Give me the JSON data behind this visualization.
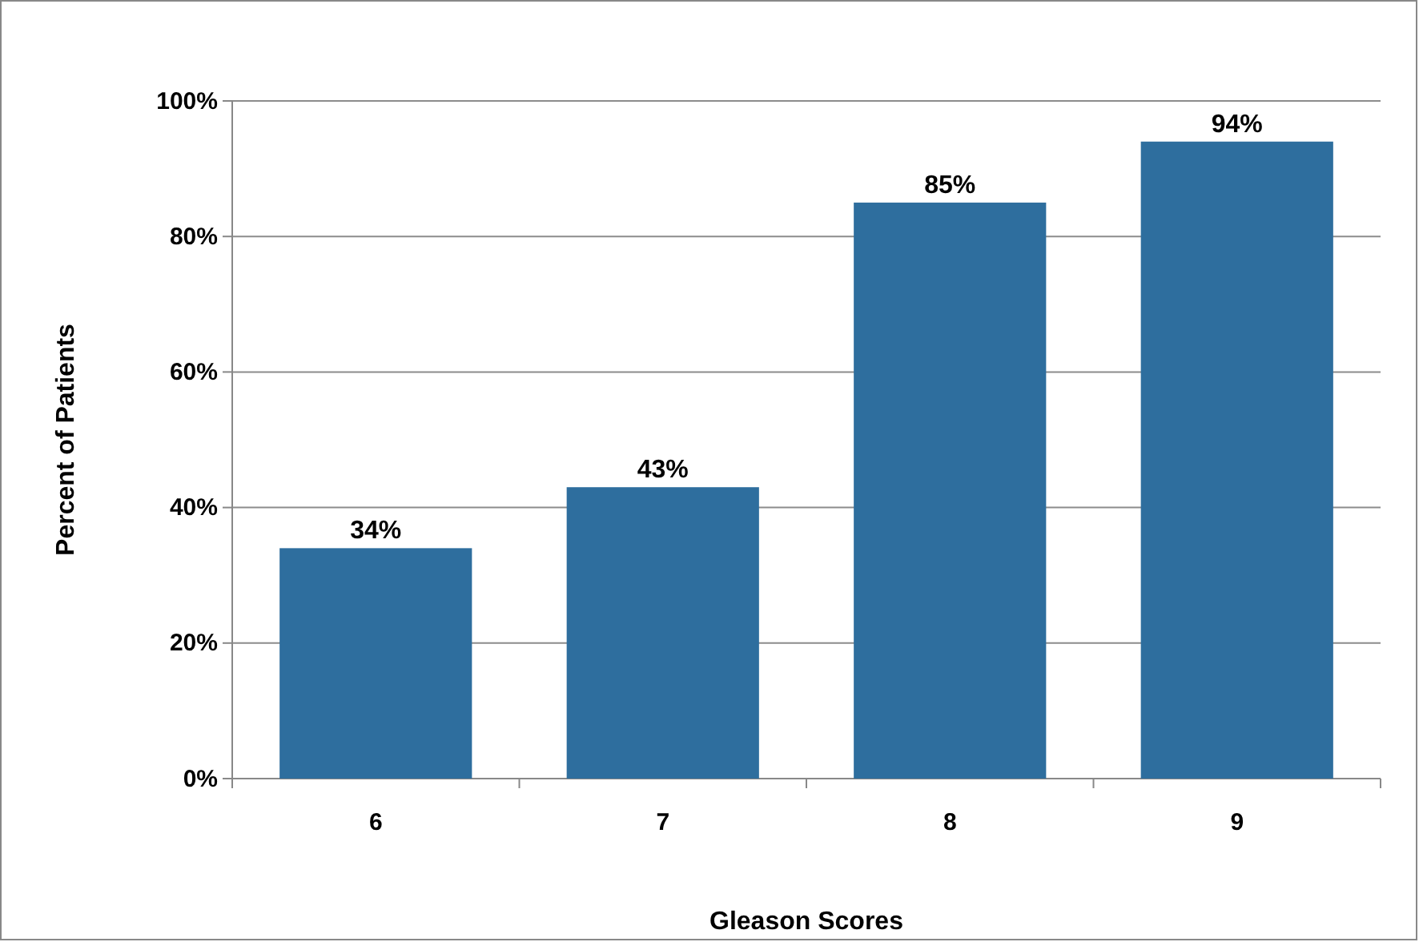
{
  "chart_data": {
    "type": "bar",
    "xlabel": "Gleason Scores",
    "ylabel": "Percent of Patients",
    "categories": [
      "6",
      "7",
      "8",
      "9"
    ],
    "values": [
      34,
      43,
      85,
      94
    ],
    "value_labels": [
      "34%",
      "43%",
      "85%",
      "94%"
    ],
    "color": "#2e6e9e",
    "ylim": [
      0,
      100
    ],
    "yticks": [
      {
        "value": 0,
        "label": "0%"
      },
      {
        "value": 20,
        "label": "20%"
      },
      {
        "value": 40,
        "label": "40%"
      },
      {
        "value": 60,
        "label": "60%"
      },
      {
        "value": 80,
        "label": "80%"
      },
      {
        "value": 100,
        "label": "100%"
      }
    ],
    "grid": "y"
  }
}
